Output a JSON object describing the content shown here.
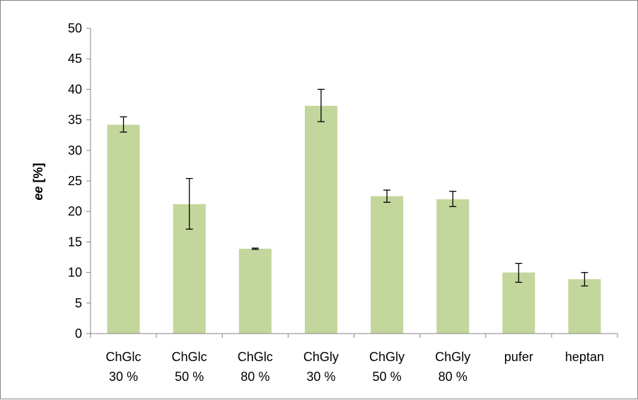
{
  "chart_data": {
    "type": "bar",
    "categories": [
      [
        "ChGlc",
        "30 %"
      ],
      [
        "ChGlc",
        "50 %"
      ],
      [
        "ChGlc",
        "80 %"
      ],
      [
        "ChGly",
        "30 %"
      ],
      [
        "ChGly",
        "50 %"
      ],
      [
        "ChGly",
        "80 %"
      ],
      [
        "pufer"
      ],
      [
        "heptan"
      ]
    ],
    "values": [
      34.2,
      21.2,
      13.9,
      37.3,
      22.5,
      22.0,
      10.0,
      8.9
    ],
    "error_low": [
      33.0,
      17.1,
      13.8,
      34.7,
      21.5,
      20.8,
      8.4,
      7.8
    ],
    "error_high": [
      35.5,
      25.4,
      14.0,
      40.0,
      23.5,
      23.3,
      11.5,
      10.0
    ],
    "ylabel_bold": "ee",
    "ylabel_rest": " [%]",
    "ylim": [
      0,
      50
    ],
    "yticks": [
      "0",
      "5",
      "10",
      "15",
      "20",
      "25",
      "30",
      "35",
      "40",
      "45",
      "50"
    ],
    "grid": false,
    "legend": "none",
    "bar_color": "#c3d69b",
    "axis_color": "#868686"
  }
}
